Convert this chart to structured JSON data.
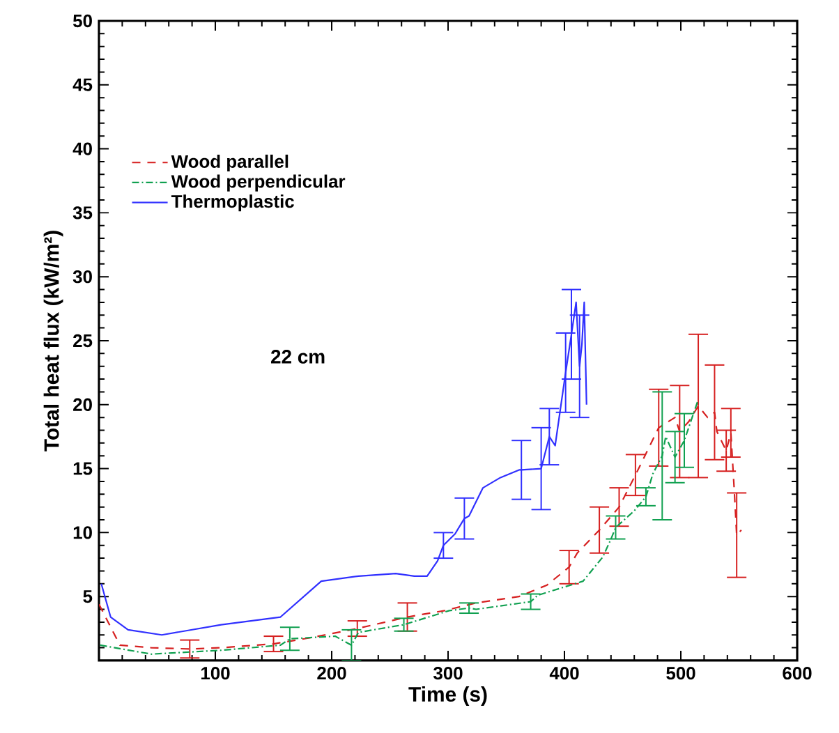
{
  "chart_data": {
    "type": "line",
    "xlabel": "Time  (s)",
    "ylabel": "Total  heat  flux  (kW/m²)",
    "xlim": [
      0,
      600
    ],
    "ylim": [
      0,
      50
    ],
    "xticks": [
      {
        "value": 0,
        "label": null
      },
      100,
      200,
      300,
      400,
      500,
      600
    ],
    "yticks": [
      {
        "value": 0,
        "label": null
      },
      5,
      10,
      15,
      20,
      25,
      30,
      35,
      40,
      45,
      50
    ],
    "legend": "top left",
    "grid": false,
    "marker": "none",
    "annotations": [
      "22  cm"
    ],
    "series": [
      {
        "name": "Wood  parallel",
        "color": "#d62020",
        "line_style": "dashed",
        "x": [
          0,
          18,
          45,
          78,
          105,
          150,
          183,
          222,
          265,
          297,
          324,
          361,
          385,
          404,
          411,
          430,
          447,
          461,
          481,
          495,
          499,
          507,
          515,
          523,
          529,
          531,
          539,
          543,
          546,
          548,
          552
        ],
        "values": [
          4.4,
          1.2,
          1.0,
          0.9,
          1.0,
          1.3,
          1.8,
          2.5,
          3.4,
          3.9,
          4.5,
          5.0,
          5.9,
          7.3,
          8.4,
          10.2,
          12.0,
          14.5,
          18.2,
          19.0,
          17.9,
          18.7,
          19.9,
          19.0,
          19.4,
          17.9,
          16.4,
          17.8,
          13.2,
          9.8,
          10.2
        ],
        "errors": [
          null,
          null,
          null,
          0.7,
          null,
          0.6,
          null,
          0.6,
          1.1,
          null,
          null,
          null,
          null,
          1.3,
          null,
          1.8,
          1.5,
          1.6,
          3,
          null,
          3.6,
          null,
          5.6,
          null,
          3.7,
          null,
          1.6,
          1.9,
          null,
          3.3,
          null
        ]
      },
      {
        "name": "Wood  perpendicular",
        "color": "#10a050",
        "line_style": "dashdot",
        "x": [
          1,
          45,
          105,
          156,
          164,
          203,
          217,
          223,
          262,
          301,
          318,
          324,
          371,
          377,
          416,
          433,
          440,
          444,
          460,
          470,
          476,
          484,
          487,
          495,
          503,
          515
        ],
        "values": [
          1.2,
          0.5,
          0.8,
          1.2,
          1.7,
          1.9,
          1.2,
          2.2,
          2.8,
          3.9,
          4.1,
          4.0,
          4.6,
          5.1,
          6.2,
          8.1,
          9.5,
          10.4,
          11.7,
          12.8,
          14.6,
          16.0,
          17.5,
          15.9,
          17.2,
          20.4
        ],
        "errors": [
          null,
          null,
          null,
          null,
          0.9,
          null,
          1.2,
          null,
          0.5,
          null,
          0.4,
          null,
          0.6,
          null,
          null,
          null,
          null,
          0.9,
          null,
          0.7,
          null,
          5,
          null,
          2,
          2.1,
          null
        ]
      },
      {
        "name": "Thermoplastic",
        "color": "#3030ff",
        "line_style": "solid",
        "x": [
          2,
          10,
          25,
          54,
          105,
          156,
          191,
          223,
          255,
          271,
          282,
          291,
          296,
          306,
          314,
          318,
          330,
          345,
          361,
          363,
          380,
          387,
          392,
          401,
          406,
          410,
          413,
          415,
          417,
          419
        ],
        "values": [
          6,
          3.4,
          2.4,
          2.0,
          2.8,
          3.4,
          6.2,
          6.6,
          6.8,
          6.6,
          6.6,
          7.8,
          9.0,
          9.9,
          11.1,
          11.3,
          13.5,
          14.3,
          14.9,
          14.9,
          15.0,
          17.5,
          16.8,
          22.5,
          25.5,
          28,
          23,
          24.7,
          28,
          20
        ],
        "errors": [
          null,
          null,
          null,
          null,
          null,
          null,
          null,
          null,
          null,
          null,
          null,
          null,
          1.0,
          null,
          1.6,
          null,
          null,
          null,
          null,
          2.3,
          3.2,
          2.2,
          null,
          3.1,
          3.5,
          null,
          4.0,
          null,
          null,
          null
        ]
      }
    ]
  }
}
